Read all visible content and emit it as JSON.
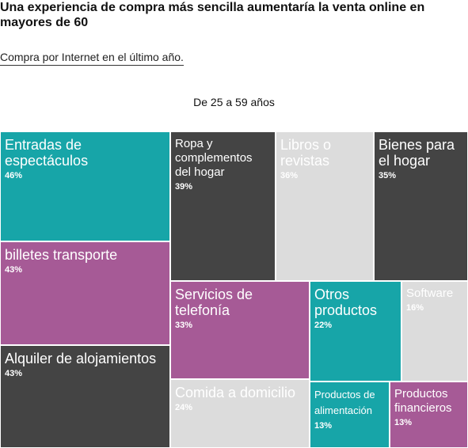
{
  "header": {
    "title": "Una experiencia de compra más sencilla aumentaría la venta online en mayores de 60",
    "subtitle": "Compra por Internet en el último año.",
    "group_label": "De 25 a 59 años"
  },
  "colors": {
    "teal": "#17a5a8",
    "purple": "#a65a96",
    "dark": "#444444",
    "light": "#dcdcdc"
  },
  "chart_data": {
    "type": "treemap",
    "title": "Una experiencia de compra más sencilla aumentaría la venta online en mayores de 60",
    "subtitle": "Compra por Internet en el último año.",
    "group": "De 25 a 59 años",
    "unit": "%",
    "items": [
      {
        "label": "Entradas de espectáculos",
        "value": 46,
        "value_label": "46%",
        "color": "teal"
      },
      {
        "label": "billetes transporte",
        "value": 43,
        "value_label": "43%",
        "color": "purple"
      },
      {
        "label": "Alquiler de alojamientos",
        "value": 43,
        "value_label": "43%",
        "color": "dark"
      },
      {
        "label": "Ropa y complementos del hogar",
        "value": 39,
        "value_label": "39%",
        "color": "dark"
      },
      {
        "label": "Libros o revistas",
        "value": 36,
        "value_label": "36%",
        "color": "light"
      },
      {
        "label": "Bienes para el hogar",
        "value": 35,
        "value_label": "35%",
        "color": "dark"
      },
      {
        "label": "Servicios de telefonía",
        "value": 33,
        "value_label": "33%",
        "color": "purple"
      },
      {
        "label": "Comida a domicilio",
        "value": 24,
        "value_label": "24%",
        "color": "light"
      },
      {
        "label": "Otros productos",
        "value": 22,
        "value_label": "22%",
        "color": "teal"
      },
      {
        "label": "Software",
        "value": 16,
        "value_label": "16%",
        "color": "light"
      },
      {
        "label": "Productos de alimentación",
        "value": 13,
        "value_label": "13%",
        "color": "teal"
      },
      {
        "label": "Productos financieros",
        "value": 13,
        "value_label": "13%",
        "color": "purple"
      }
    ]
  }
}
